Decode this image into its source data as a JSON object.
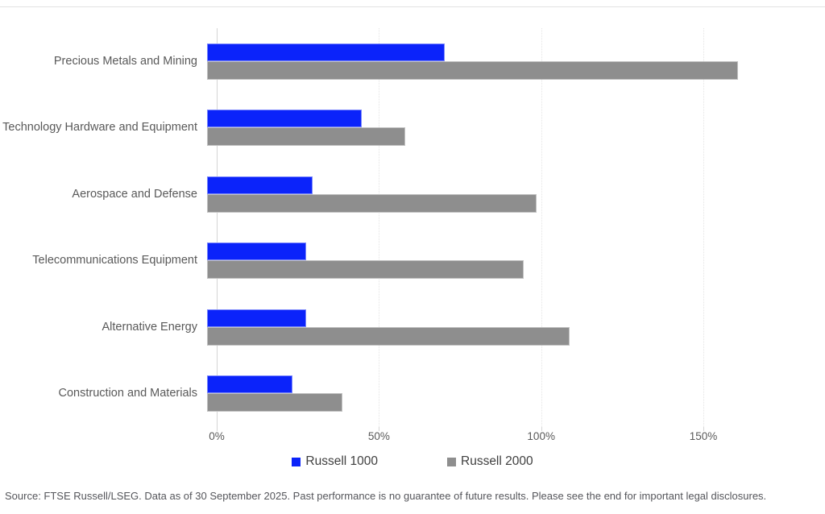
{
  "chart_data": {
    "type": "bar",
    "orientation": "horizontal",
    "title": "",
    "categories": [
      "Precious Metals and Mining",
      "Technology Hardware and Equipment",
      "Aerospace and Defense",
      "Telecommunications Equipment",
      "Alternative Energy",
      "Construction and Materials"
    ],
    "series": [
      {
        "name": "Russell 1000",
        "color": "#0b23fa",
        "values": [
          72,
          47,
          32,
          30,
          30,
          26
        ]
      },
      {
        "name": "Russell 2000",
        "color": "#8e8e8e",
        "values": [
          161,
          60,
          100,
          96,
          110,
          41
        ]
      }
    ],
    "value_unit": "%",
    "x_ticks": [
      {
        "value": 0,
        "label": "0%"
      },
      {
        "value": 50,
        "label": "50%"
      },
      {
        "value": 100,
        "label": "100%"
      },
      {
        "value": 150,
        "label": "150%"
      }
    ],
    "xlim": [
      0,
      185
    ],
    "grid": "vertical-dotted",
    "legend_position": "bottom"
  },
  "colors": {
    "russell_1000": "#0b23fa",
    "russell_2000": "#8e8e8e",
    "axis": "#d6d6d6",
    "text": "#595959"
  },
  "footer": {
    "source_note": "Source: FTSE Russell/LSEG. Data as of 30 September 2025. Past performance is no guarantee of future results. Please see the end for important legal disclosures."
  }
}
